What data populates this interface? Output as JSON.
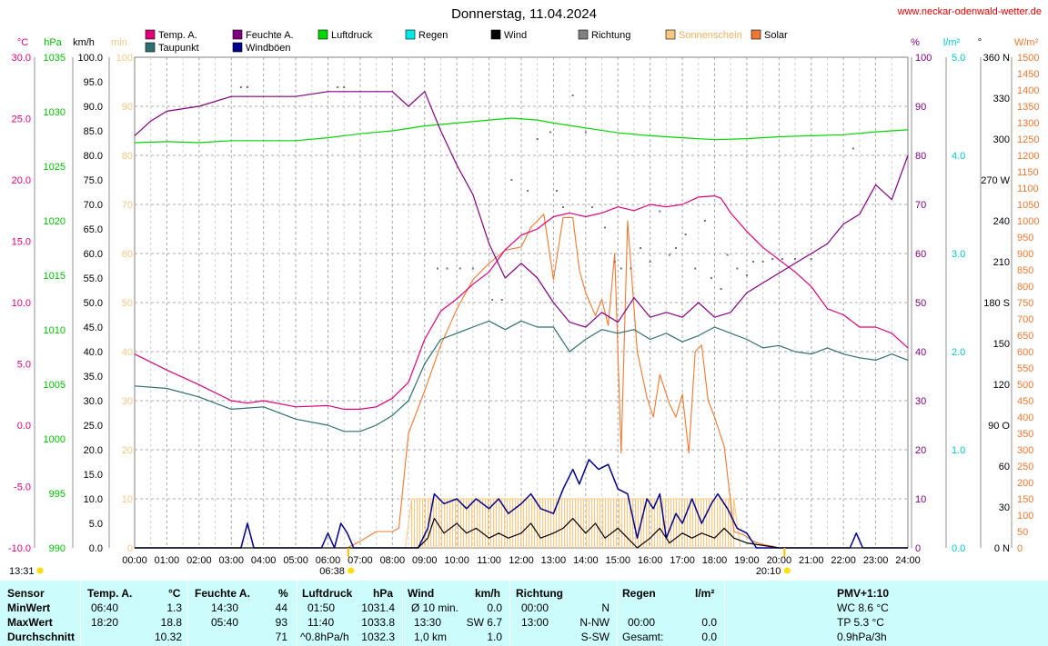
{
  "page": {
    "title": "Donnerstag, 11.04.2024",
    "site": "www.neckar-odenwald-wetter.de",
    "sunrise_label": "06:38",
    "sunset_label": "20:10",
    "moon_label": "13:31"
  },
  "colors": {
    "temp": "#e0007a",
    "feuchte": "#800080",
    "luftdruck": "#00d800",
    "regen": "#00e8e8",
    "wind": "#000000",
    "richtung": "#808080",
    "sonnenschein": "#f8c880",
    "solar": "#f07830",
    "taupunkt": "#2f6f6f",
    "windboeen": "#00008c"
  },
  "chart_data": {
    "type": "line",
    "title": "Donnerstag, 11.04.2024",
    "x_ticks": [
      "00:00",
      "01:00",
      "02:00",
      "03:00",
      "04:00",
      "05:00",
      "06:00",
      "07:00",
      "08:00",
      "09:00",
      "10:00",
      "11:00",
      "12:00",
      "13:00",
      "14:00",
      "15:00",
      "16:00",
      "17:00",
      "18:00",
      "19:00",
      "20:00",
      "21:00",
      "22:00",
      "23:00",
      "24:00"
    ],
    "legend": [
      {
        "key": "temp",
        "label": "Temp. A."
      },
      {
        "key": "taupunkt",
        "label": "Taupunkt"
      },
      {
        "key": "feuchte",
        "label": "Feuchte A."
      },
      {
        "key": "windboeen",
        "label": "Windböen"
      },
      {
        "key": "luftdruck",
        "label": "Luftdruck"
      },
      {
        "key": "regen",
        "label": "Regen"
      },
      {
        "key": "wind",
        "label": "Wind"
      },
      {
        "key": "richtung",
        "label": "Richtung"
      },
      {
        "key": "sonnenschein",
        "label": "Sonnenschein"
      },
      {
        "key": "solar",
        "label": "Solar"
      }
    ],
    "axes": {
      "temp": {
        "unit": "°C",
        "range": [
          -10,
          30
        ],
        "ticks": [
          "30.0",
          "25.0",
          "20.0",
          "15.0",
          "10.0",
          "5.0",
          "0.0",
          "-5.0",
          "-10.0"
        ]
      },
      "pressure": {
        "unit": "hPa",
        "range": [
          990,
          1040
        ],
        "ticks": [
          "1035",
          "1030",
          "1025",
          "1020",
          "1015",
          "1010",
          "1005",
          "1000",
          "995",
          "990"
        ]
      },
      "wind": {
        "unit": "km/h",
        "range": [
          0,
          100
        ],
        "ticks": [
          "100.0",
          "95.0",
          "90.0",
          "85.0",
          "80.0",
          "75.0",
          "70.0",
          "65.0",
          "60.0",
          "55.0",
          "50.0",
          "45.0",
          "40.0",
          "35.0",
          "30.0",
          "25.0",
          "20.0",
          "15.0",
          "10.0",
          "5.0",
          "0.0"
        ]
      },
      "sun": {
        "unit": "min",
        "range": [
          0,
          100
        ],
        "ticks": [
          "100",
          "90",
          "80",
          "70",
          "60",
          "50",
          "40",
          "30",
          "20",
          "10",
          "0"
        ]
      },
      "humidity": {
        "unit": "%",
        "range": [
          0,
          100
        ],
        "ticks": [
          "100",
          "90",
          "80",
          "70",
          "60",
          "50",
          "40",
          "30",
          "20",
          "10",
          "0"
        ]
      },
      "rain": {
        "unit": "l/m²",
        "range": [
          0,
          5
        ],
        "ticks": [
          "5.0",
          "4.0",
          "3.0",
          "2.0",
          "1.0",
          "0.0"
        ]
      },
      "direction": {
        "unit": "°",
        "range": [
          0,
          360
        ],
        "ticks": [
          "360 N",
          "330",
          "300",
          "270 W",
          "240",
          "210",
          "180 S",
          "150",
          "120",
          "90 O",
          "60",
          "30",
          "0 N"
        ]
      },
      "solar": {
        "unit": "W/m²",
        "range": [
          0,
          1500
        ],
        "ticks": [
          "1500",
          "1450",
          "1400",
          "1350",
          "1300",
          "1250",
          "1200",
          "1150",
          "1100",
          "1050",
          "1000",
          "950",
          "900",
          "850",
          "800",
          "750",
          "700",
          "650",
          "600",
          "550",
          "500",
          "450",
          "400",
          "350",
          "300",
          "250",
          "200",
          "150",
          "100",
          "50",
          "0"
        ]
      }
    },
    "series": [
      {
        "key": "temp",
        "name": "Temp. A.",
        "axis": "temp",
        "x": [
          0,
          1,
          2,
          3,
          3.5,
          4,
          5,
          6,
          6.5,
          7,
          7.5,
          8,
          8.5,
          9,
          9.5,
          10,
          10.5,
          11,
          11.5,
          12,
          12.5,
          13,
          13.5,
          14,
          14.5,
          15,
          15.5,
          16,
          16.5,
          17,
          17.5,
          18,
          18.2,
          18.5,
          19,
          19.5,
          20,
          20.5,
          21,
          21.5,
          22,
          22.5,
          23,
          23.5,
          24
        ],
        "y": [
          5.8,
          4.5,
          3.3,
          2.0,
          1.8,
          2.0,
          1.5,
          1.6,
          1.3,
          1.3,
          1.5,
          2.2,
          3.5,
          7.0,
          9.3,
          10.3,
          11.5,
          12.5,
          14.3,
          15.5,
          16.0,
          17.0,
          17.3,
          17.0,
          17.3,
          17.8,
          17.5,
          18.0,
          17.8,
          18.0,
          18.6,
          18.7,
          18.5,
          17.3,
          15.8,
          14.5,
          13.5,
          12.5,
          11.3,
          9.5,
          9.0,
          8.0,
          8.0,
          7.5,
          6.3
        ]
      },
      {
        "key": "taupunkt",
        "name": "Taupunkt",
        "axis": "temp",
        "x": [
          0,
          1,
          2,
          3,
          4,
          5,
          6,
          6.5,
          7,
          7.5,
          8,
          8.5,
          9,
          9.5,
          10,
          10.5,
          11,
          11.5,
          12,
          12.5,
          13,
          13.5,
          14,
          14.5,
          15,
          15.5,
          16,
          16.5,
          17,
          17.5,
          18,
          18.5,
          19,
          19.5,
          20,
          20.5,
          21,
          21.5,
          22,
          22.5,
          23,
          23.5,
          24
        ],
        "y": [
          3.2,
          3.0,
          2.3,
          1.3,
          1.5,
          0.5,
          0.0,
          -0.5,
          -0.5,
          0.0,
          0.8,
          2.0,
          5.0,
          7.0,
          7.5,
          8.0,
          8.5,
          7.8,
          8.5,
          8.0,
          8.0,
          6.0,
          7.0,
          7.8,
          7.5,
          7.8,
          7.0,
          7.5,
          6.8,
          7.3,
          8.0,
          7.5,
          7.0,
          6.3,
          6.5,
          6.0,
          5.8,
          6.3,
          5.8,
          5.5,
          5.3,
          5.8,
          5.3
        ]
      },
      {
        "key": "feuchte",
        "name": "Feuchte A.",
        "axis": "humidity",
        "x": [
          0,
          0.5,
          1,
          2,
          3,
          4,
          5,
          6,
          7,
          7.5,
          8,
          8.5,
          9,
          9.5,
          10,
          10.5,
          11,
          11.5,
          12,
          12.5,
          13,
          13.5,
          14,
          14.5,
          15,
          15.5,
          16,
          16.5,
          17,
          17.5,
          18,
          18.5,
          19,
          19.5,
          20,
          20.5,
          21,
          21.5,
          22,
          22.5,
          23,
          23.5,
          24
        ],
        "y": [
          84,
          87,
          89,
          90,
          92,
          92,
          92,
          93,
          93,
          93,
          93,
          90,
          93,
          85,
          78,
          72,
          62,
          55,
          58,
          55,
          50,
          46,
          45,
          48,
          46,
          51,
          47,
          48,
          47,
          50,
          47,
          48,
          52,
          54,
          56,
          58,
          60,
          62,
          66,
          68,
          74,
          71,
          80
        ]
      },
      {
        "key": "luftdruck",
        "name": "Luftdruck",
        "axis": "pressure",
        "x": [
          0,
          1,
          2,
          3,
          4,
          5,
          6,
          7,
          8,
          9,
          10,
          11,
          11.7,
          12.5,
          13,
          14,
          15,
          16,
          17,
          18,
          19,
          20,
          21,
          22,
          23,
          24
        ],
        "y": [
          1031.3,
          1031.4,
          1031.3,
          1031.5,
          1031.5,
          1031.5,
          1031.8,
          1032.2,
          1032.5,
          1033.0,
          1033.3,
          1033.6,
          1033.8,
          1033.6,
          1033.3,
          1032.8,
          1032.3,
          1032.0,
          1031.8,
          1031.6,
          1031.7,
          1031.9,
          1032.0,
          1032.1,
          1032.4,
          1032.6
        ]
      },
      {
        "key": "windboeen",
        "name": "Windböen",
        "axis": "wind",
        "x": [
          0,
          3.3,
          3.5,
          3.7,
          5.8,
          6.0,
          6.2,
          6.4,
          6.6,
          6.8,
          7,
          8.8,
          9.1,
          9.3,
          9.6,
          10,
          10.3,
          10.6,
          11,
          11.3,
          11.6,
          12,
          12.3,
          12.6,
          13,
          13.3,
          13.6,
          13.8,
          14.1,
          14.4,
          14.7,
          15,
          15.3,
          15.6,
          15.9,
          16.1,
          16.3,
          16.5,
          16.8,
          17,
          17.3,
          17.6,
          17.9,
          18.1,
          18.4,
          18.7,
          19,
          19.3,
          19.6,
          20,
          22.2,
          22.4,
          22.6,
          24
        ],
        "y": [
          0,
          0,
          5,
          0,
          0,
          3,
          0,
          5,
          3,
          0,
          0,
          0,
          4,
          11,
          9,
          10,
          8,
          10,
          8,
          10,
          7,
          9,
          11,
          8,
          7,
          12,
          16,
          13,
          18,
          16,
          17,
          12,
          11,
          2,
          10,
          8,
          11,
          2,
          7,
          5,
          10,
          5,
          9,
          11,
          8,
          4,
          3,
          0,
          0,
          0,
          0,
          3,
          0,
          0
        ]
      },
      {
        "key": "wind",
        "name": "Wind",
        "axis": "wind",
        "x": [
          0,
          8.8,
          9.1,
          9.3,
          9.6,
          10,
          10.3,
          10.6,
          11,
          11.3,
          11.6,
          12,
          12.3,
          12.6,
          13,
          13.3,
          13.6,
          14,
          14.3,
          14.6,
          15,
          15.3,
          15.6,
          16,
          16.3,
          16.6,
          17,
          17.3,
          17.6,
          18,
          18.3,
          18.6,
          19,
          20,
          24
        ],
        "y": [
          0,
          0,
          2,
          6,
          3,
          5,
          3,
          4,
          2,
          3,
          2,
          3,
          5,
          2,
          3,
          4,
          6,
          3,
          5,
          2,
          4,
          2,
          0,
          2,
          4,
          1,
          3,
          2,
          3,
          2,
          4,
          2,
          1,
          0,
          0
        ]
      },
      {
        "key": "solar",
        "name": "Solar",
        "axis": "solar",
        "x": [
          6.6,
          7,
          7.5,
          8,
          8.2,
          8.5,
          9,
          9.5,
          10,
          10.5,
          11,
          11.5,
          12,
          12.3,
          12.7,
          13,
          13.3,
          13.6,
          13.8,
          14,
          14.3,
          14.5,
          14.7,
          14.9,
          15.1,
          15.3,
          15.6,
          15.9,
          16.1,
          16.3,
          16.6,
          16.8,
          17,
          17.2,
          17.4,
          17.6,
          17.8,
          18,
          18.3,
          18.6,
          18.9,
          19.2,
          19.5,
          19.8,
          20,
          20.1
        ],
        "y": [
          0,
          20,
          50,
          50,
          60,
          350,
          480,
          620,
          730,
          820,
          870,
          910,
          920,
          980,
          1020,
          820,
          1010,
          1010,
          850,
          780,
          710,
          760,
          680,
          900,
          290,
          1000,
          600,
          460,
          400,
          530,
          440,
          400,
          470,
          290,
          600,
          620,
          450,
          400,
          310,
          50,
          40,
          20,
          10,
          5,
          0,
          0
        ]
      },
      {
        "key": "sonnenschein",
        "name": "Sonnenschein",
        "axis": "sun",
        "x": [
          8.4,
          8.6,
          17.8,
          18.0,
          18.6,
          18.8
        ],
        "y": [
          0,
          10,
          10,
          10,
          10,
          0
        ]
      },
      {
        "key": "richtung",
        "name": "Richtung",
        "axis": "direction",
        "x": [
          3.3,
          3.5,
          6.3,
          6.5,
          9.4,
          9.7,
          10.1,
          10.5,
          11.1,
          11.4,
          11.7,
          12.2,
          12.5,
          12.9,
          13.1,
          13.3,
          13.6,
          14.0,
          14.2,
          14.6,
          14.9,
          15.1,
          15.4,
          15.7,
          16.0,
          16.3,
          16.6,
          16.8,
          17.1,
          17.4,
          17.7,
          17.9,
          18.2,
          18.4,
          18.7,
          19.0,
          19.2,
          19.5,
          19.8,
          20.1,
          20.5,
          21.0,
          22.3
        ],
        "y": [
          338,
          338,
          338,
          338,
          205,
          205,
          205,
          205,
          182,
          182,
          270,
          262,
          300,
          305,
          262,
          250,
          332,
          305,
          250,
          235,
          210,
          205,
          205,
          220,
          210,
          247,
          215,
          220,
          230,
          205,
          240,
          198,
          190,
          215,
          205,
          200,
          210,
          210,
          212,
          212,
          212,
          212,
          293
        ]
      }
    ],
    "sun_markers": {
      "sunrise": 6.63,
      "sunset": 20.17
    }
  },
  "stats": {
    "headers": {
      "sensor": "Sensor",
      "temp": "Temp. A.",
      "temp_unit": "°C",
      "feuchte": "Feuchte A.",
      "feuchte_unit": "%",
      "luftdruck": "Luftdruck",
      "luftdruck_unit": "hPa",
      "wind": "Wind",
      "wind_unit": "km/h",
      "richtung": "Richtung",
      "regen": "Regen",
      "regen_unit": "l/m²",
      "pmv": "PMV+1:10"
    },
    "rows": [
      {
        "label": "MinWert",
        "temp_time": "06:40",
        "temp_val": "1.3",
        "feuchte_time": "14:30",
        "feuchte_val": "44",
        "luft_time": "01:50",
        "luft_val": "1031.4",
        "wind_time": "Ø 10 min.",
        "wind_val": "0.0",
        "richt_time": "00:00",
        "richt_val": "N",
        "regen_time": "",
        "regen_val": "",
        "pmv": "WC 8.6 °C"
      },
      {
        "label": "MaxWert",
        "temp_time": "18:20",
        "temp_val": "18.8",
        "feuchte_time": "05:40",
        "feuchte_val": "93",
        "luft_time": "11:40",
        "luft_val": "1033.8",
        "wind_time": "13:30",
        "wind_val": "SW 6.7",
        "richt_time": "13:00",
        "richt_val": "N-NW",
        "regen_time": "00:00",
        "regen_val": "0.0",
        "pmv": "TP 5.3 °C"
      },
      {
        "label": "Durchschnitt",
        "temp_time": "",
        "temp_val": "10.32",
        "feuchte_time": "",
        "feuchte_val": "71",
        "luft_time": "^0.8hPa/h",
        "luft_val": "1032.3",
        "wind_time": "1,0 km",
        "wind_val": "1.0",
        "richt_time": "",
        "richt_val": "S-SW",
        "regen_time": "Gesamt:",
        "regen_val": "0.0",
        "pmv": "0.9hPa/3h"
      }
    ]
  }
}
